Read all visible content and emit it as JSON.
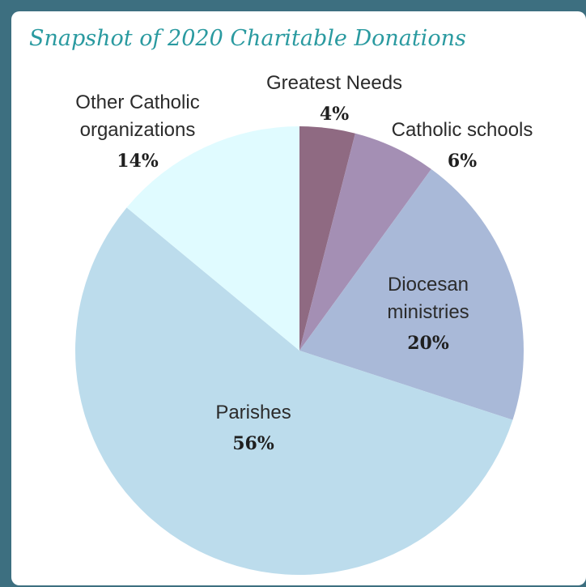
{
  "chart_data": {
    "type": "pie",
    "title": "Snapshot of 2020 Charitable Donations",
    "start_angle_deg": 0,
    "direction": "clockwise",
    "slices": [
      {
        "label_lines": [
          "Greatest Needs"
        ],
        "value": 4,
        "value_label": "4%",
        "color": "#8f6a82"
      },
      {
        "label_lines": [
          "Catholic schools"
        ],
        "value": 6,
        "value_label": "6%",
        "color": "#a48fb4"
      },
      {
        "label_lines": [
          "Diocesan",
          "ministries"
        ],
        "value": 20,
        "value_label": "20%",
        "color": "#a9b9d8"
      },
      {
        "label_lines": [
          "Parishes"
        ],
        "value": 56,
        "value_label": "56%",
        "color": "#bcdcec"
      },
      {
        "label_lines": [
          "Other Catholic",
          "organizations"
        ],
        "value": 14,
        "value_label": "14%",
        "color": "#e0fbff"
      }
    ]
  },
  "colors": {
    "frame": "#3d6f80",
    "card": "#ffffff",
    "title": "#2a9aa0"
  }
}
